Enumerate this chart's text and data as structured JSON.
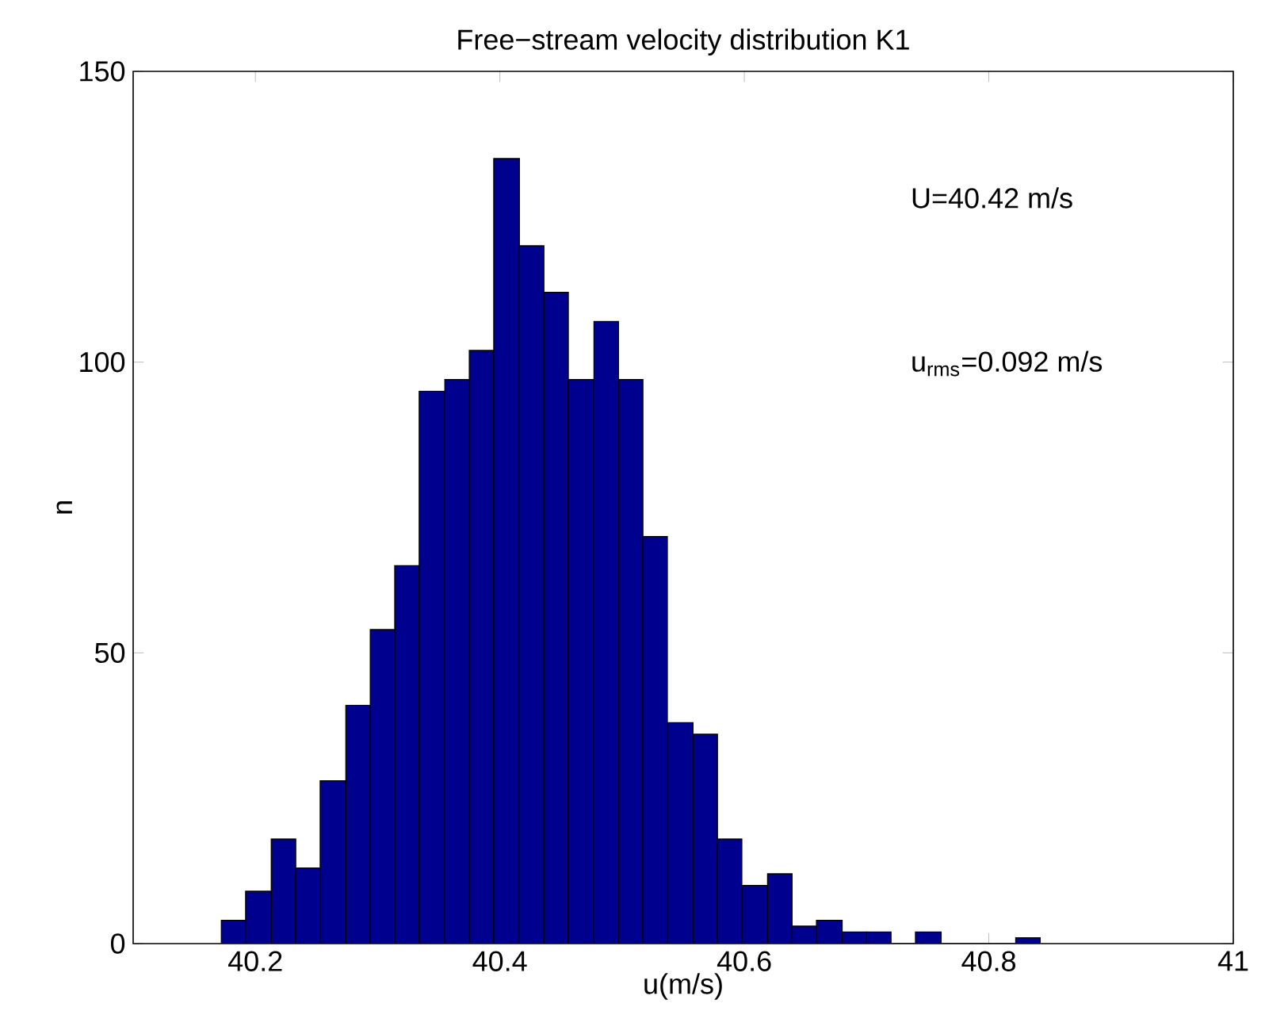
{
  "chart_data": {
    "type": "histogram",
    "title": "Free−stream velocity distribution K1",
    "xlabel": "u(m/s)",
    "ylabel": "n",
    "bins": [
      40.172,
      40.192,
      40.213,
      40.233,
      40.253,
      40.274,
      40.294,
      40.314,
      40.334,
      40.355,
      40.375,
      40.395,
      40.416,
      40.436,
      40.456,
      40.477,
      40.497,
      40.517,
      40.537,
      40.558,
      40.578,
      40.598,
      40.619,
      40.639,
      40.659,
      40.68,
      40.7,
      40.72,
      40.74,
      40.761,
      40.822,
      40.842
    ],
    "values": [
      4,
      9,
      18,
      13,
      28,
      41,
      54,
      65,
      95,
      97,
      102,
      135,
      120,
      112,
      97,
      107,
      97,
      70,
      38,
      36,
      18,
      10,
      12,
      3,
      4,
      2,
      2,
      0,
      2,
      0,
      1
    ],
    "color": "#00008f",
    "xlim": [
      40.1,
      41
    ],
    "xticks": [
      40.2,
      40.4,
      40.6,
      40.8,
      41
    ],
    "ylim": [
      0,
      150
    ],
    "yticks": [
      0,
      50,
      100,
      150
    ],
    "annotations": [
      "U=40.42 m/s",
      "u$_{rms}$=0.092 m/s"
    ]
  }
}
